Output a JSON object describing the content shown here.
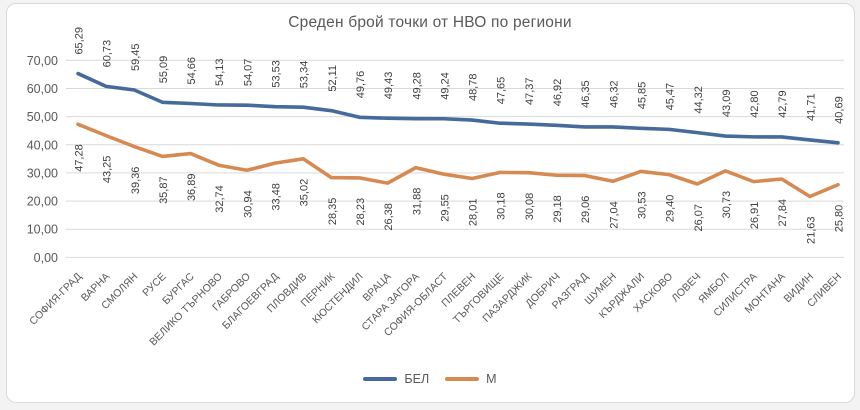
{
  "title": "Среден брой точки от НВО по региони",
  "chart_data": {
    "type": "line",
    "title": "Среден брой точки от НВО по региони",
    "categories": [
      "СОФИЯ-ГРАД",
      "ВАРНА",
      "СМОЛЯН",
      "РУСЕ",
      "БУРГАС",
      "ВЕЛИКО ТЪРНОВО",
      "ГАБРОВО",
      "БЛАГОЕВГРАД",
      "ПЛОВДИВ",
      "ПЕРНИК",
      "КЮСТЕНДИЛ",
      "ВРАЦА",
      "СТАРА ЗАГОРА",
      "СОФИЯ-ОБЛАСТ",
      "ПЛЕВЕН",
      "ТЪРГОВИЩЕ",
      "ПАЗАРДЖИК",
      "ДОБРИЧ",
      "РАЗГРАД",
      "ШУМЕН",
      "КЪРДЖАЛИ",
      "ХАСКОВО",
      "ЛОВЕЧ",
      "ЯМБОЛ",
      "СИЛИСТРА",
      "МОНТАНА",
      "ВИДИН",
      "СЛИВЕН"
    ],
    "series": [
      {
        "name": "БЕЛ",
        "color": "#466A9C",
        "values": [
          65.29,
          60.73,
          59.45,
          55.09,
          54.66,
          54.13,
          54.07,
          53.53,
          53.34,
          52.11,
          49.76,
          49.43,
          49.28,
          49.24,
          48.78,
          47.65,
          47.37,
          46.92,
          46.35,
          46.32,
          45.85,
          45.47,
          44.32,
          43.09,
          42.8,
          42.79,
          41.71,
          40.69
        ]
      },
      {
        "name": "М",
        "color": "#D68A52",
        "values": [
          47.28,
          43.25,
          39.36,
          35.87,
          36.89,
          32.74,
          30.94,
          33.48,
          35.02,
          28.35,
          28.23,
          26.38,
          31.88,
          29.55,
          28.01,
          30.18,
          30.08,
          29.18,
          29.06,
          27.04,
          30.53,
          29.4,
          26.07,
          30.73,
          26.91,
          27.84,
          21.63,
          25.8
        ]
      }
    ],
    "ylim": [
      0,
      70
    ],
    "ytick_interval": 10,
    "ytick_labels": [
      "0,00",
      "10,00",
      "20,00",
      "30,00",
      "40,00",
      "50,00",
      "60,00",
      "70,00"
    ],
    "grid": true,
    "data_labels": true,
    "data_label_rotation": "vertical",
    "category_label_rotation": "diagonal-45",
    "legend_position": "bottom",
    "decimal_separator": ","
  },
  "style": {
    "axis_text_color": "#595959",
    "data_label_color": "#3f3f3f",
    "gridline_color": "#d9d9d9",
    "frame_border_color": "#d9d9d9",
    "background": "#ffffff"
  }
}
